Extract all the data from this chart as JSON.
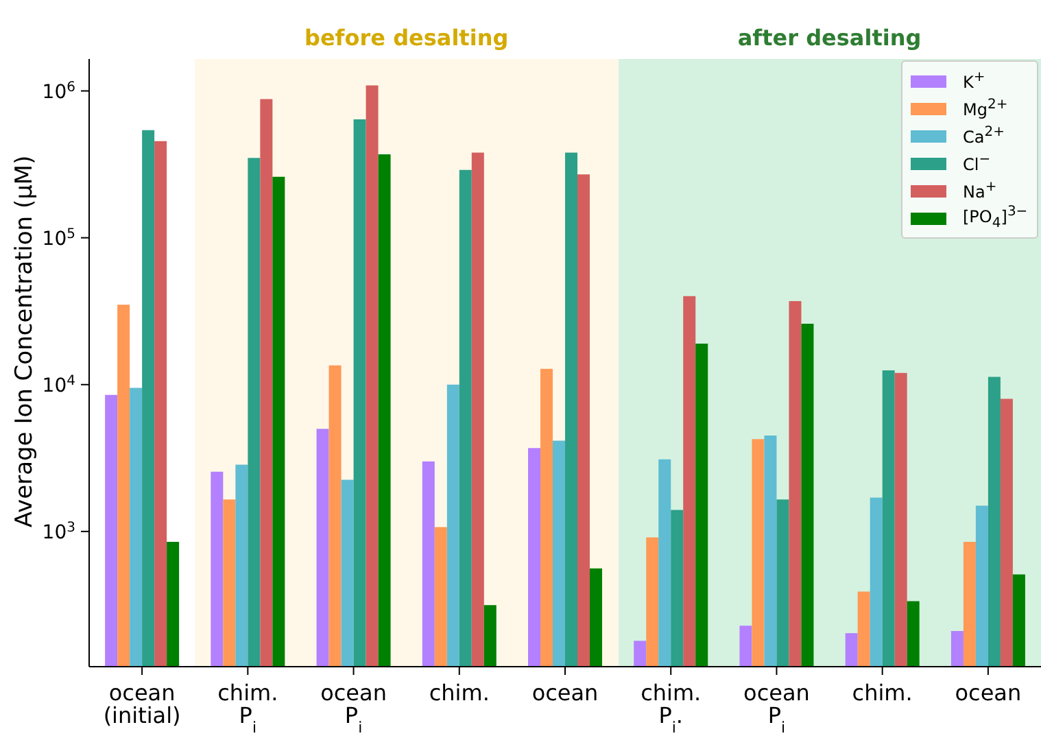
{
  "chart_data": {
    "type": "bar",
    "ylabel": "Average Ion Concentration (μM)",
    "categories": [
      "ocean\n(initial)",
      "chim.\nP$_{i}$",
      "ocean\nP$_{i}$",
      "chim.",
      "ocean",
      "chim.\nP$_{i}$.",
      "ocean\nP$_{i}$",
      "chim.",
      "ocean"
    ],
    "series": [
      {
        "name": "K$^{+}$",
        "color": "#b380ff",
        "values": [
          8500,
          2550,
          5000,
          3000,
          3700,
          180,
          228,
          203,
          210
        ]
      },
      {
        "name": "Mg$^{2+}$",
        "color": "#ff9955",
        "values": [
          35000,
          1650,
          13500,
          1070,
          12800,
          910,
          4250,
          390,
          850
        ]
      },
      {
        "name": "Ca$^{2+}$",
        "color": "#5fbcd3",
        "values": [
          9500,
          2850,
          2250,
          10000,
          4150,
          3100,
          4500,
          1700,
          1500
        ]
      },
      {
        "name": "Cl$^{−}$",
        "color": "#2ca089",
        "values": [
          540000,
          350000,
          640000,
          290000,
          380000,
          1400,
          1650,
          12500,
          11300
        ]
      },
      {
        "name": "Na$^{+}$",
        "color": "#d45f5f",
        "values": [
          455000,
          880000,
          1090000,
          380000,
          270000,
          40000,
          37000,
          12000,
          8000
        ]
      },
      {
        "name": "[PO$_{4}$]$^{3−}$",
        "color": "#008000",
        "values": [
          850,
          260000,
          370000,
          315,
          560,
          19000,
          26000,
          335,
          510
        ]
      }
    ],
    "log": true,
    "ylim": [
      120,
      1650000
    ],
    "yticks": [
      {
        "value": 1000,
        "label": "10$^{3}$"
      },
      {
        "value": 10000,
        "label": "10$^{4}$"
      },
      {
        "value": 100000,
        "label": "10$^{5}$"
      },
      {
        "value": 1000000,
        "label": "10$^{6}$"
      }
    ],
    "annotations": [
      "before desalting",
      "after desalting"
    ],
    "legend": "top right",
    "grid": false
  }
}
